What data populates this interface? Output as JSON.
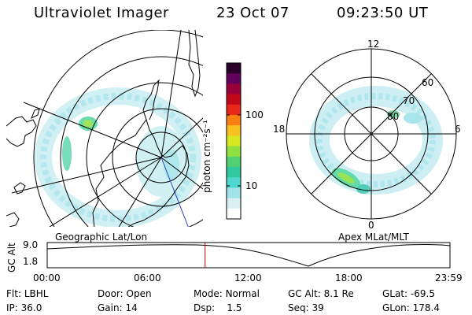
{
  "header": {
    "instrument": "Ultraviolet Imager",
    "date": "23 Oct 07",
    "time": "09:23:50 UT"
  },
  "left_panel": {
    "label": "Geographic Lat/Lon"
  },
  "right_panel": {
    "label": "Apex MLat/MLT",
    "mlt_labels": [
      "12",
      "18",
      "6",
      "0"
    ],
    "lat_labels": [
      "60",
      "70",
      "80"
    ]
  },
  "colorbar": {
    "unit": "photon cm⁻²s⁻¹",
    "tick_labels": [
      "100",
      "10"
    ],
    "colors": [
      "#ffffff",
      "#d8f0f4",
      "#a0e4ea",
      "#50d8d0",
      "#30c8a0",
      "#50d070",
      "#90e040",
      "#d8e820",
      "#f8c020",
      "#f88010",
      "#e82818",
      "#c00818",
      "#98003c",
      "#60005c",
      "#280028"
    ]
  },
  "timeline": {
    "ylabel": "GC Alt",
    "y_values": [
      "9.0",
      "1.8"
    ],
    "x_ticks": [
      "00:00",
      "06:00",
      "12:00",
      "18:00",
      "23:59"
    ],
    "current_fraction": 0.392
  },
  "info": {
    "row1": [
      {
        "key": "Flt:",
        "value": "LBHL"
      },
      {
        "key": "Door:",
        "value": "Open"
      },
      {
        "key": "Mode:",
        "value": "Normal"
      },
      {
        "key": "GC Alt:",
        "value": "8.1 Re"
      },
      {
        "key": "GLat:",
        "value": "-69.5"
      }
    ],
    "row2": [
      {
        "key": "IP:",
        "value": "36.0"
      },
      {
        "key": "Gain:",
        "value": "14"
      },
      {
        "key": "Dsp:",
        "value": "1.5"
      },
      {
        "key": "Seq:",
        "value": "39"
      },
      {
        "key": "GLon:",
        "value": "178.4"
      }
    ]
  }
}
